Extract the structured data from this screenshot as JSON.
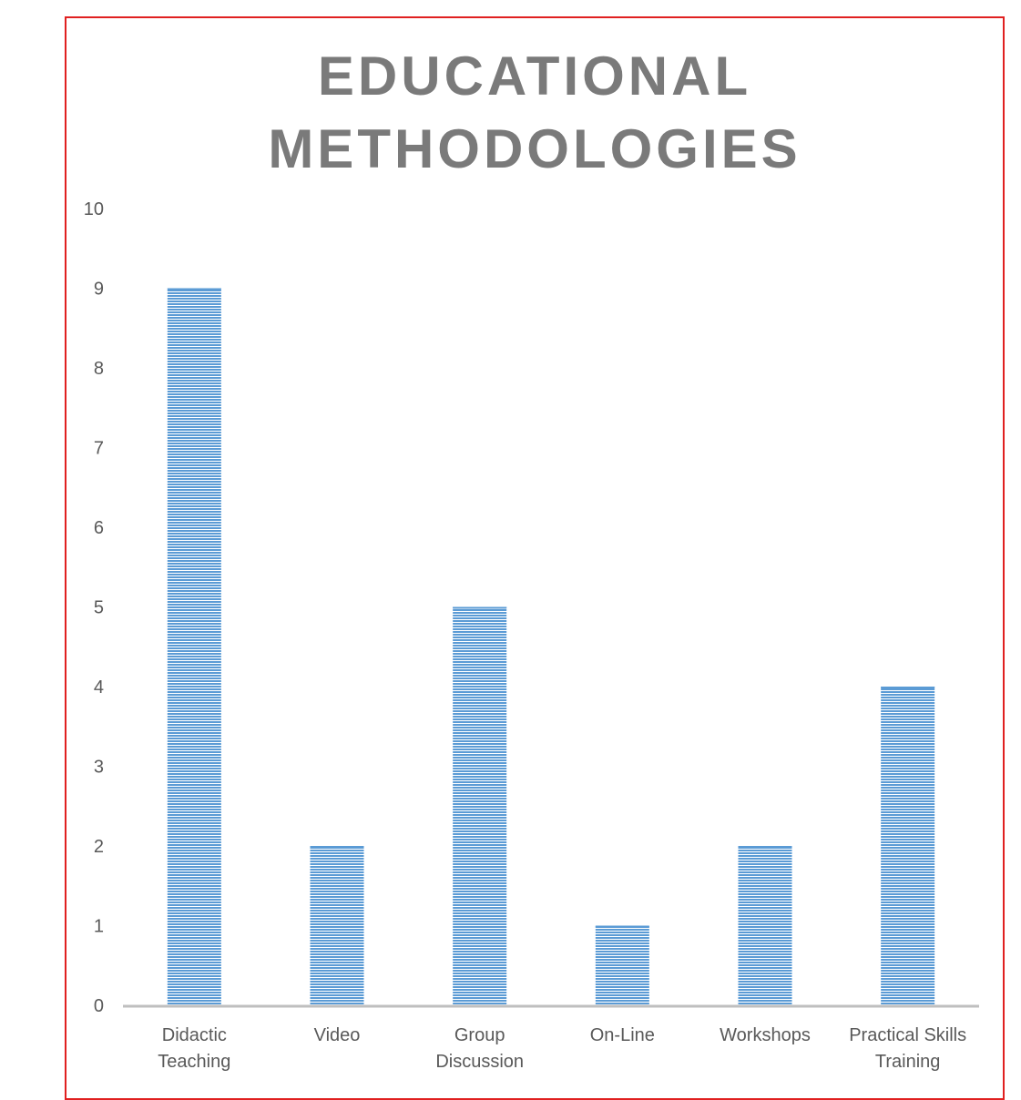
{
  "chart_data": {
    "type": "bar",
    "title_lines": [
      "EDUCATIONAL",
      "METHODOLOGIES"
    ],
    "categories": [
      [
        "Didactic",
        "Teaching"
      ],
      [
        "Video"
      ],
      [
        "Group",
        "Discussion"
      ],
      [
        "On-Line"
      ],
      [
        "Workshops"
      ],
      [
        "Practical Skills",
        "Training"
      ]
    ],
    "values": [
      9,
      2,
      5,
      1,
      2,
      4
    ],
    "ylim": [
      0,
      10
    ],
    "yticks": [
      0,
      1,
      2,
      3,
      4,
      5,
      6,
      7,
      8,
      9,
      10
    ],
    "grid": false,
    "legend": "none",
    "bar_color": "#5b9bd5",
    "frame_color": "#e02020",
    "title_color": "#7a7a7a",
    "axis_color": "#bfbfbf"
  }
}
